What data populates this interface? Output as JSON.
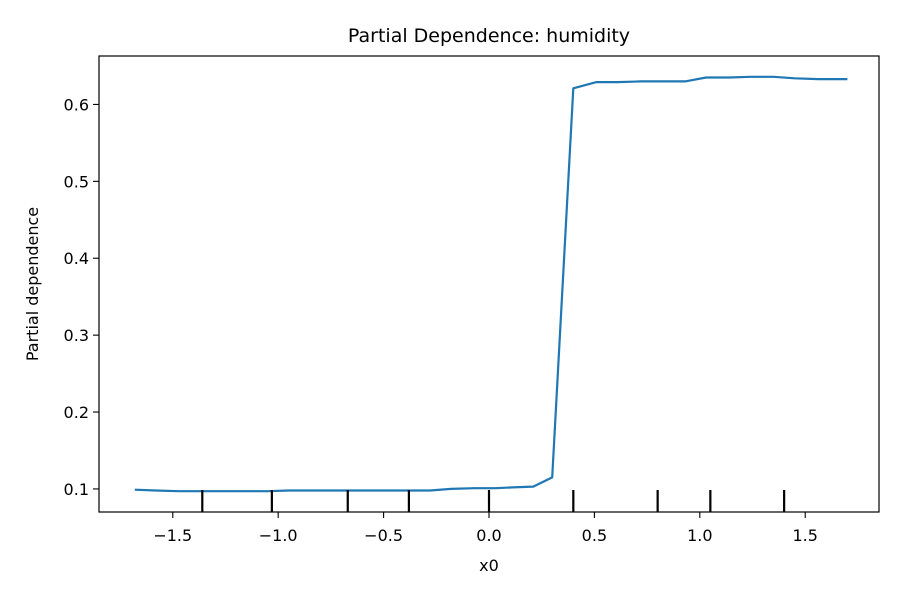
{
  "chart_data": {
    "type": "line",
    "title": "Partial Dependence: humidity",
    "xlabel": "x0",
    "ylabel": "Partial dependence",
    "xlim": [
      -1.85,
      1.85
    ],
    "ylim": [
      0.07,
      0.663
    ],
    "x_ticks": [
      -1.5,
      -1.0,
      -0.5,
      0.0,
      0.5,
      1.0,
      1.5
    ],
    "x_tick_labels": [
      "−1.5",
      "−1.0",
      "−0.5",
      "0.0",
      "0.5",
      "1.0",
      "1.5"
    ],
    "y_ticks": [
      0.1,
      0.2,
      0.3,
      0.4,
      0.5,
      0.6
    ],
    "y_tick_labels": [
      "0.1",
      "0.2",
      "0.3",
      "0.4",
      "0.5",
      "0.6"
    ],
    "grid": false,
    "series": [
      {
        "color": "#1f77b4",
        "x": [
          -1.68,
          -1.58,
          -1.47,
          -1.37,
          -1.26,
          -1.16,
          -1.05,
          -0.95,
          -0.84,
          -0.74,
          -0.63,
          -0.53,
          -0.42,
          -0.32,
          -0.28,
          -0.18,
          -0.07,
          0.03,
          0.11,
          0.21,
          0.3,
          0.4,
          0.51,
          0.61,
          0.72,
          0.82,
          0.93,
          1.03,
          1.14,
          1.24,
          1.35,
          1.45,
          1.56,
          1.66,
          1.7
        ],
        "y": [
          0.099,
          0.098,
          0.097,
          0.097,
          0.097,
          0.097,
          0.097,
          0.098,
          0.098,
          0.098,
          0.098,
          0.098,
          0.098,
          0.098,
          0.098,
          0.1,
          0.101,
          0.101,
          0.102,
          0.103,
          0.115,
          0.621,
          0.629,
          0.629,
          0.63,
          0.63,
          0.63,
          0.635,
          0.635,
          0.636,
          0.636,
          0.634,
          0.633,
          0.633,
          0.633
        ]
      }
    ],
    "rug_x": [
      -1.36,
      -1.03,
      -0.67,
      -0.38,
      0.0,
      0.4,
      0.8,
      1.05,
      1.4
    ]
  }
}
